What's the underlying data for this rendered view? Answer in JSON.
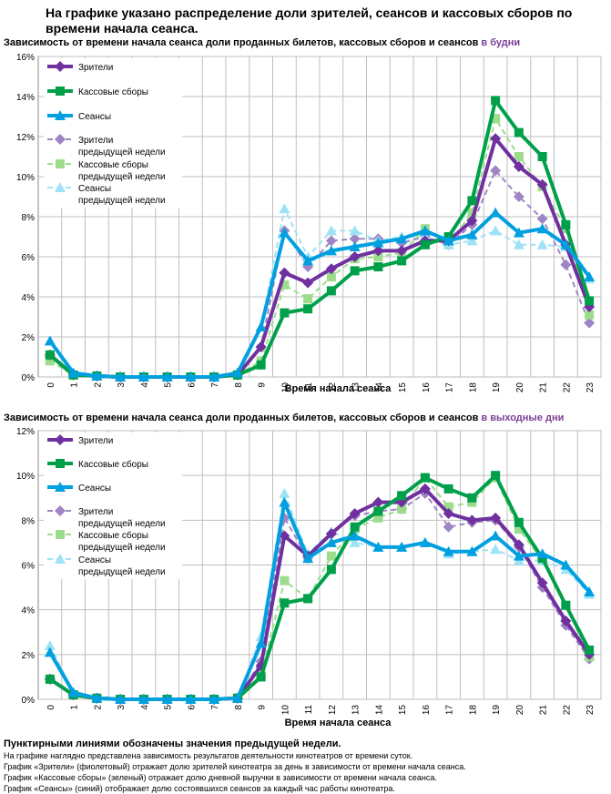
{
  "main_title": "На графике указано распределение доли зрителей, сеансов и кассовых сборов по времени начала сеанса.",
  "chart_data": [
    {
      "type": "line",
      "title": "Зависимость от времени начала сеанса доли проданных билетов, кассовых сборов и сеансов",
      "title_accent": "в будни",
      "xlabel": "Время начала сеанса",
      "x": [
        "0",
        "1",
        "2",
        "3",
        "4",
        "5",
        "6",
        "7",
        "8",
        "9",
        "10",
        "11",
        "12",
        "13",
        "14",
        "15",
        "16",
        "17",
        "18",
        "19",
        "20",
        "21",
        "22",
        "23"
      ],
      "ylim": [
        0,
        16
      ],
      "yticks": [
        "0%",
        "2%",
        "4%",
        "6%",
        "8%",
        "10%",
        "12%",
        "14%",
        "16%"
      ],
      "legend_placement": "top-left",
      "series": [
        {
          "name": "Зрители",
          "color": "#7030a0",
          "style": "solid",
          "marker": "diamond",
          "values": [
            1.1,
            0.1,
            0.05,
            0,
            0,
            0,
            0,
            0,
            0.1,
            1.5,
            5.2,
            4.7,
            5.4,
            6.0,
            6.3,
            6.3,
            6.8,
            6.8,
            7.8,
            11.9,
            10.5,
            9.6,
            6.6,
            3.5
          ]
        },
        {
          "name": "Кассовые сборы",
          "color": "#00a04a",
          "style": "solid",
          "marker": "square",
          "values": [
            1.1,
            0.1,
            0.05,
            0,
            0,
            0,
            0,
            0,
            0.1,
            0.6,
            3.2,
            3.4,
            4.3,
            5.3,
            5.5,
            5.8,
            6.6,
            7.0,
            8.8,
            13.8,
            12.2,
            11.0,
            7.6,
            3.8
          ]
        },
        {
          "name": "Сеансы",
          "color": "#00a0e0",
          "style": "solid",
          "marker": "triangle",
          "values": [
            1.8,
            0.2,
            0.05,
            0,
            0,
            0,
            0,
            0,
            0.2,
            2.5,
            7.2,
            5.8,
            6.3,
            6.5,
            6.7,
            6.9,
            7.3,
            6.8,
            7.1,
            8.2,
            7.2,
            7.4,
            6.6,
            5.0
          ]
        },
        {
          "name": "Зрители предыдущей недели",
          "color": "#a085c4",
          "style": "dashed",
          "marker": "diamond",
          "values": [
            1.0,
            0.1,
            0.05,
            0,
            0,
            0,
            0,
            0,
            0.1,
            1.5,
            7.3,
            5.5,
            6.8,
            6.9,
            6.9,
            6.7,
            7.0,
            6.6,
            7.6,
            10.3,
            9.0,
            7.9,
            5.6,
            2.7
          ]
        },
        {
          "name": "Кассовые сборы предыдущей недели",
          "color": "#9ddc8c",
          "style": "dashed",
          "marker": "square",
          "values": [
            0.8,
            0.1,
            0.05,
            0,
            0,
            0,
            0,
            0,
            0.1,
            0.8,
            4.6,
            3.9,
            5.0,
            5.9,
            6.0,
            6.2,
            7.4,
            6.6,
            8.2,
            12.9,
            11.0,
            9.5,
            7.4,
            3.1
          ]
        },
        {
          "name": "Сеансы предыдущей недели",
          "color": "#9ee2f5",
          "style": "dashed",
          "marker": "triangle",
          "values": [
            1.8,
            0.2,
            0.05,
            0,
            0,
            0,
            0,
            0,
            0.2,
            2.5,
            8.4,
            6.0,
            7.3,
            7.3,
            6.8,
            7.0,
            7.0,
            6.6,
            6.8,
            7.3,
            6.6,
            6.6,
            6.5,
            4.9
          ]
        }
      ]
    },
    {
      "type": "line",
      "title": "Зависимость от времени начала сеанса доли проданных билетов, кассовых сборов и сеансов",
      "title_accent": "в выходные дни",
      "xlabel": "Время начала сеанса",
      "x": [
        "0",
        "1",
        "2",
        "3",
        "4",
        "5",
        "6",
        "7",
        "8",
        "9",
        "10",
        "11",
        "12",
        "13",
        "14",
        "15",
        "16",
        "17",
        "18",
        "19",
        "20",
        "21",
        "22",
        "23"
      ],
      "ylim": [
        0,
        12
      ],
      "yticks": [
        "0%",
        "2%",
        "4%",
        "6%",
        "8%",
        "10%",
        "12%"
      ],
      "legend_placement": "top-left",
      "series": [
        {
          "name": "Зрители",
          "color": "#7030a0",
          "style": "solid",
          "marker": "diamond",
          "values": [
            0.9,
            0.2,
            0.05,
            0,
            0,
            0,
            0,
            0,
            0.05,
            1.5,
            7.3,
            6.4,
            7.4,
            8.3,
            8.8,
            8.8,
            9.4,
            8.3,
            8.0,
            8.1,
            6.9,
            5.2,
            3.5,
            2.0
          ]
        },
        {
          "name": "Кассовые сборы",
          "color": "#00a04a",
          "style": "solid",
          "marker": "square",
          "values": [
            0.9,
            0.2,
            0.05,
            0,
            0,
            0,
            0,
            0,
            0.05,
            1.0,
            4.3,
            4.5,
            5.8,
            7.7,
            8.4,
            9.1,
            9.9,
            9.4,
            9.0,
            10.0,
            7.9,
            6.3,
            4.2,
            2.2
          ]
        },
        {
          "name": "Сеансы",
          "color": "#00a0e0",
          "style": "solid",
          "marker": "triangle",
          "values": [
            2.1,
            0.3,
            0.05,
            0,
            0,
            0,
            0,
            0,
            0.05,
            2.5,
            8.8,
            6.3,
            7.0,
            7.3,
            6.8,
            6.8,
            7.0,
            6.6,
            6.6,
            7.3,
            6.4,
            6.5,
            6.0,
            4.8
          ]
        },
        {
          "name": "Зрители предыдущей недели",
          "color": "#a085c4",
          "style": "dashed",
          "marker": "diamond",
          "values": [
            0.9,
            0.2,
            0.05,
            0,
            0,
            0,
            0,
            0,
            0.05,
            1.7,
            8.1,
            6.3,
            7.4,
            8.2,
            8.4,
            8.5,
            9.2,
            7.7,
            7.9,
            8.0,
            6.8,
            5.0,
            3.3,
            1.8
          ]
        },
        {
          "name": "Кассовые сборы предыдущей недели",
          "color": "#9ddc8c",
          "style": "dashed",
          "marker": "square",
          "values": [
            0.9,
            0.2,
            0.05,
            0,
            0,
            0,
            0,
            0,
            0.05,
            1.1,
            5.3,
            4.5,
            6.4,
            7.6,
            8.1,
            8.5,
            9.9,
            8.6,
            8.8,
            9.9,
            7.6,
            6.2,
            4.2,
            1.9
          ]
        },
        {
          "name": "Сеансы предыдущей недели",
          "color": "#9ee2f5",
          "style": "dashed",
          "marker": "triangle",
          "values": [
            2.4,
            0.3,
            0.05,
            0,
            0,
            0,
            0,
            0,
            0.05,
            2.8,
            9.2,
            6.5,
            7.5,
            7.0,
            6.8,
            6.8,
            7.0,
            6.5,
            6.6,
            6.7,
            6.2,
            6.2,
            5.8,
            4.7
          ]
        }
      ]
    }
  ],
  "notes": {
    "lead": "Пунктирными линиями обозначены значения предыдущей недели.",
    "lines": [
      "На графике наглядно представлена зависимость результатов деятельности кинотеатров от времени суток.",
      "График «Зрители» (фиолетовый) отражает долю зрителей кинотеатра за день в зависимости от времени начала сеанса.",
      "График «Кассовые сборы» (зеленый) отражает долю дневной выручки в зависимости от времени начала сеанса.",
      "График «Сеансы» (синий) отображает долю состоявшихся сеансов за каждый час работы кинотеатра."
    ]
  }
}
